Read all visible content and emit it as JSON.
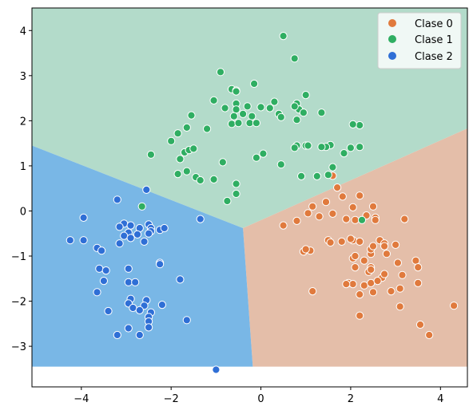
{
  "chart_data": {
    "type": "scatter",
    "title": "",
    "xlabel": "",
    "ylabel": "",
    "xlim": [
      -5.1,
      4.6
    ],
    "ylim": [
      -3.9,
      4.5
    ],
    "xticks": [
      -4,
      -2,
      0,
      2,
      4
    ],
    "xtick_labels": [
      "−4",
      "−2",
      "0",
      "2",
      "4"
    ],
    "yticks": [
      -3,
      -2,
      -1,
      0,
      1,
      2,
      3,
      4
    ],
    "ytick_labels": [
      "−3",
      "−2",
      "−1",
      "0",
      "1",
      "2",
      "3",
      "4"
    ],
    "grid": false,
    "legend_position": "top-right",
    "decision_regions": {
      "y_bottom": -3.45,
      "junction": [
        -0.4,
        -0.38
      ],
      "boundaries": [
        {
          "between": [
            "Clase 0",
            "Clase 1"
          ],
          "to": [
            4.6,
            1.83
          ]
        },
        {
          "between": [
            "Clase 1",
            "Clase 2"
          ],
          "to": [
            -5.1,
            1.45
          ]
        },
        {
          "between": [
            "Clase 0",
            "Clase 2"
          ],
          "to": [
            -0.18,
            -3.45
          ]
        }
      ],
      "colors": {
        "Clase 0": "#e4bea9",
        "Clase 1": "#b3dbca",
        "Clase 2": "#79b7e6"
      }
    },
    "series": [
      {
        "name": "Clase 0",
        "color": "#e07a3d",
        "points": [
          [
            1.6,
            0.78
          ],
          [
            1.7,
            0.52
          ],
          [
            1.82,
            0.32
          ],
          [
            2.2,
            0.34
          ],
          [
            1.45,
            0.2
          ],
          [
            1.15,
            0.1
          ],
          [
            2.05,
            0.08
          ],
          [
            2.5,
            0.1
          ],
          [
            2.35,
            -0.1
          ],
          [
            1.6,
            -0.06
          ],
          [
            1.05,
            -0.05
          ],
          [
            1.3,
            -0.12
          ],
          [
            1.9,
            -0.18
          ],
          [
            2.1,
            -0.2
          ],
          [
            2.55,
            -0.15
          ],
          [
            3.2,
            -0.18
          ],
          [
            0.5,
            -0.32
          ],
          [
            0.8,
            -0.22
          ],
          [
            1.5,
            -0.65
          ],
          [
            1.55,
            -0.7
          ],
          [
            2.05,
            -0.65
          ],
          [
            2.65,
            -0.65
          ],
          [
            2.75,
            -0.72
          ],
          [
            3.0,
            -0.75
          ],
          [
            2.45,
            -0.95
          ],
          [
            2.8,
            -0.95
          ],
          [
            2.05,
            -1.05
          ],
          [
            2.3,
            -1.1
          ],
          [
            2.4,
            -1.35
          ],
          [
            2.7,
            -1.48
          ],
          [
            2.1,
            -1.25
          ],
          [
            1.95,
            -1.6
          ],
          [
            2.05,
            -1.62
          ],
          [
            2.3,
            -1.65
          ],
          [
            2.45,
            -1.6
          ],
          [
            2.6,
            -1.55
          ],
          [
            2.75,
            -1.4
          ],
          [
            3.15,
            -1.42
          ],
          [
            3.45,
            -1.1
          ],
          [
            3.5,
            -1.25
          ],
          [
            3.5,
            -1.6
          ],
          [
            2.5,
            -1.8
          ],
          [
            2.2,
            -1.85
          ],
          [
            2.9,
            -1.78
          ],
          [
            3.1,
            -2.12
          ],
          [
            2.2,
            -2.32
          ],
          [
            3.55,
            -2.52
          ],
          [
            3.75,
            -2.75
          ],
          [
            1.1,
            -0.88
          ],
          [
            1.15,
            -1.78
          ],
          [
            0.95,
            -0.9
          ],
          [
            2.55,
            -0.2
          ],
          [
            1.8,
            -0.68
          ],
          [
            2.0,
            -0.62
          ],
          [
            2.2,
            -0.68
          ],
          [
            2.45,
            -0.85
          ],
          [
            2.5,
            -0.78
          ],
          [
            2.75,
            -0.78
          ],
          [
            3.05,
            -1.15
          ],
          [
            3.1,
            -1.72
          ],
          [
            4.3,
            -2.1
          ],
          [
            2.45,
            -1.25
          ],
          [
            2.45,
            -1.3
          ],
          [
            1.0,
            -0.85
          ],
          [
            2.1,
            -1.0
          ],
          [
            1.9,
            -1.62
          ]
        ]
      },
      {
        "name": "Clase 1",
        "color": "#2fae62",
        "points": [
          [
            0.5,
            3.88
          ],
          [
            0.75,
            3.38
          ],
          [
            -0.9,
            3.08
          ],
          [
            -0.15,
            2.82
          ],
          [
            -0.65,
            2.7
          ],
          [
            -0.55,
            2.67
          ],
          [
            0.8,
            2.38
          ],
          [
            1.0,
            2.57
          ],
          [
            0.3,
            2.42
          ],
          [
            0.2,
            2.28
          ],
          [
            -0.3,
            2.32
          ],
          [
            -0.55,
            2.38
          ],
          [
            -1.05,
            2.45
          ],
          [
            -0.8,
            2.28
          ],
          [
            -0.55,
            2.25
          ],
          [
            -0.6,
            2.1
          ],
          [
            -0.4,
            2.15
          ],
          [
            -0.2,
            2.1
          ],
          [
            0.0,
            2.3
          ],
          [
            0.4,
            2.15
          ],
          [
            0.45,
            2.08
          ],
          [
            0.85,
            2.25
          ],
          [
            0.95,
            2.18
          ],
          [
            1.35,
            2.18
          ],
          [
            -1.55,
            2.12
          ],
          [
            -2.0,
            1.55
          ],
          [
            -1.85,
            1.72
          ],
          [
            -1.65,
            1.85
          ],
          [
            -1.2,
            1.82
          ],
          [
            -0.65,
            1.93
          ],
          [
            -0.5,
            1.95
          ],
          [
            -0.25,
            1.95
          ],
          [
            -0.1,
            1.95
          ],
          [
            0.8,
            2.02
          ],
          [
            1.55,
            1.46
          ],
          [
            1.45,
            1.42
          ],
          [
            1.85,
            1.28
          ],
          [
            2.0,
            1.4
          ],
          [
            2.2,
            1.42
          ],
          [
            2.2,
            1.9
          ],
          [
            1.0,
            1.45
          ],
          [
            0.8,
            1.45
          ],
          [
            0.75,
            1.4
          ],
          [
            -1.7,
            1.3
          ],
          [
            -1.6,
            1.35
          ],
          [
            -1.5,
            1.38
          ],
          [
            -2.45,
            1.25
          ],
          [
            -0.85,
            1.08
          ],
          [
            -0.1,
            1.18
          ],
          [
            0.45,
            1.03
          ],
          [
            -1.65,
            0.88
          ],
          [
            -1.45,
            0.75
          ],
          [
            -1.35,
            0.68
          ],
          [
            -1.05,
            0.7
          ],
          [
            -0.55,
            0.6
          ],
          [
            -0.55,
            0.38
          ],
          [
            -0.75,
            0.22
          ],
          [
            0.9,
            0.77
          ],
          [
            1.5,
            0.8
          ],
          [
            -2.65,
            0.1
          ],
          [
            -1.85,
            0.82
          ],
          [
            -1.8,
            1.15
          ],
          [
            0.05,
            1.27
          ],
          [
            1.05,
            1.45
          ],
          [
            1.25,
            0.77
          ],
          [
            1.6,
            0.97
          ],
          [
            2.05,
            1.92
          ],
          [
            2.25,
            -0.2
          ],
          [
            -0.55,
            2.65
          ],
          [
            0.75,
            2.32
          ],
          [
            1.35,
            1.42
          ]
        ]
      },
      {
        "name": "Clase 2",
        "color": "#2f6fd6",
        "points": [
          [
            -3.2,
            0.25
          ],
          [
            -2.55,
            0.47
          ],
          [
            -1.35,
            -0.18
          ],
          [
            -3.95,
            -0.15
          ],
          [
            -3.05,
            -0.28
          ],
          [
            -2.9,
            -0.32
          ],
          [
            -3.15,
            -0.35
          ],
          [
            -2.7,
            -0.38
          ],
          [
            -2.5,
            -0.3
          ],
          [
            -2.45,
            -0.38
          ],
          [
            -2.25,
            -0.42
          ],
          [
            -2.15,
            -0.38
          ],
          [
            -2.95,
            -0.48
          ],
          [
            -2.75,
            -0.52
          ],
          [
            -2.45,
            -0.45
          ],
          [
            -2.5,
            -0.5
          ],
          [
            -3.05,
            -0.55
          ],
          [
            -2.9,
            -0.6
          ],
          [
            -2.6,
            -0.68
          ],
          [
            -4.25,
            -0.65
          ],
          [
            -3.95,
            -0.65
          ],
          [
            -3.65,
            -0.82
          ],
          [
            -3.55,
            -0.88
          ],
          [
            -3.15,
            -0.72
          ],
          [
            -2.25,
            -1.15
          ],
          [
            -2.25,
            -1.18
          ],
          [
            -3.6,
            -1.28
          ],
          [
            -3.45,
            -1.32
          ],
          [
            -2.95,
            -1.28
          ],
          [
            -3.5,
            -1.55
          ],
          [
            -2.95,
            -1.58
          ],
          [
            -2.8,
            -1.58
          ],
          [
            -1.8,
            -1.52
          ],
          [
            -3.65,
            -1.8
          ],
          [
            -2.9,
            -1.95
          ],
          [
            -2.95,
            -2.05
          ],
          [
            -2.55,
            -1.98
          ],
          [
            -2.6,
            -2.1
          ],
          [
            -2.85,
            -2.15
          ],
          [
            -2.7,
            -2.2
          ],
          [
            -2.2,
            -2.08
          ],
          [
            -3.4,
            -2.22
          ],
          [
            -2.45,
            -2.25
          ],
          [
            -2.5,
            -2.35
          ],
          [
            -2.5,
            -2.45
          ],
          [
            -2.95,
            -2.6
          ],
          [
            -2.5,
            -2.58
          ],
          [
            -1.65,
            -2.42
          ],
          [
            -3.2,
            -2.75
          ],
          [
            -2.7,
            -2.75
          ],
          [
            -1.0,
            -3.52
          ]
        ]
      }
    ]
  },
  "legend": {
    "items": [
      {
        "label": "Clase 0",
        "color": "#e07a3d"
      },
      {
        "label": "Clase 1",
        "color": "#2fae62"
      },
      {
        "label": "Clase 2",
        "color": "#2f6fd6"
      }
    ]
  }
}
